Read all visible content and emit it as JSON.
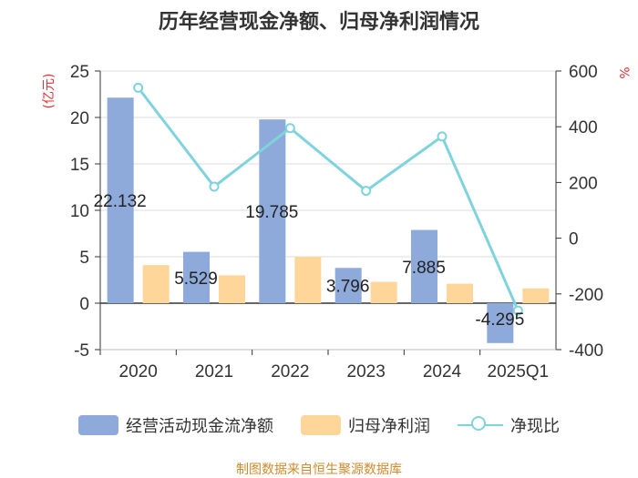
{
  "chart_data": {
    "type": "bar",
    "title": "历年经营现金净额、归母净利润情况",
    "categories": [
      "2020",
      "2021",
      "2022",
      "2023",
      "2024",
      "2025Q1"
    ],
    "series": [
      {
        "name": "经营活动现金流净额",
        "axis": "left",
        "type": "bar",
        "color": "#8eaadb",
        "values": [
          22.132,
          5.529,
          19.785,
          3.796,
          7.885,
          -4.295
        ],
        "labels": [
          "22.132",
          "5.529",
          "19.785",
          "3.796",
          "7.885",
          "-4.295"
        ]
      },
      {
        "name": "归母净利润",
        "axis": "left",
        "type": "bar",
        "color": "#ffd699",
        "values": [
          4.1,
          3.0,
          5.0,
          2.3,
          2.1,
          1.6
        ]
      },
      {
        "name": "净现比",
        "axis": "right",
        "type": "line",
        "color": "#7fd3dc",
        "values": [
          540,
          185,
          395,
          170,
          365,
          -260
        ]
      }
    ],
    "yleft": {
      "label": "(亿元)",
      "ylim": [
        -5,
        25
      ],
      "ticks": [
        "25",
        "20",
        "15",
        "10",
        "5",
        "0",
        "-5"
      ],
      "tick_values": [
        25,
        20,
        15,
        10,
        5,
        0,
        -5
      ]
    },
    "yright": {
      "label": "%",
      "ylim": [
        -400,
        600
      ],
      "ticks": [
        "600",
        "400",
        "200",
        "0",
        "-200",
        "-400"
      ],
      "tick_values": [
        600,
        400,
        200,
        0,
        -200,
        -400
      ]
    },
    "grid": true,
    "legend_position": "bottom"
  },
  "footer": "制图数据来自恒生聚源数据库"
}
